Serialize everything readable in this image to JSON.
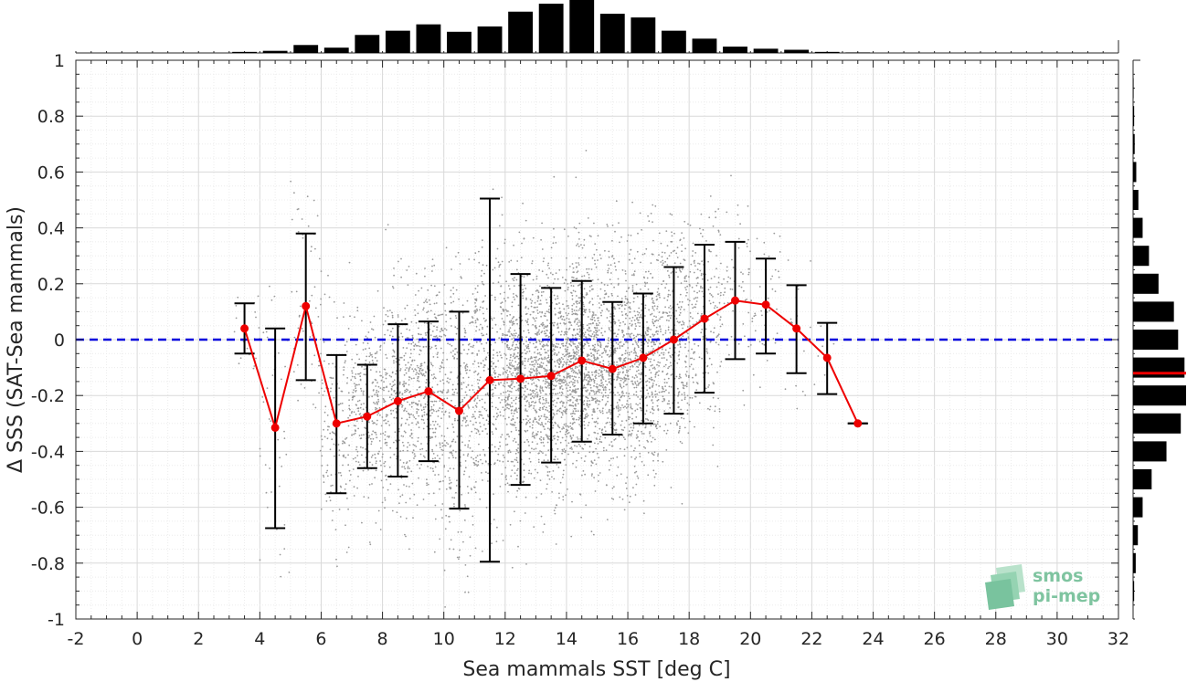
{
  "chart_data": {
    "type": "scatter",
    "xlabel": "Sea mammals SST [deg C]",
    "ylabel": "Δ SSS (SAT-Sea mammals)",
    "xlim": [
      -2,
      32
    ],
    "ylim": [
      -1,
      1
    ],
    "x_ticks": [
      "-2",
      "0",
      "2",
      "4",
      "6",
      "8",
      "10",
      "12",
      "14",
      "16",
      "18",
      "20",
      "22",
      "24",
      "26",
      "28",
      "30",
      "32"
    ],
    "y_ticks": [
      "-1",
      "-0.8",
      "-0.6",
      "-0.4",
      "-0.2",
      "0",
      "0.2",
      "0.4",
      "0.6",
      "0.8",
      "1"
    ],
    "grid": true,
    "reference_line": {
      "y": 0,
      "color": "#0000dd",
      "style": "dashed"
    },
    "binned_mean": {
      "color": "#ee0000",
      "x": [
        3.5,
        4.5,
        5.5,
        6.5,
        7.5,
        8.5,
        9.5,
        10.5,
        11.5,
        12.5,
        13.5,
        14.5,
        15.5,
        16.5,
        17.5,
        18.5,
        19.5,
        20.5,
        21.5,
        22.5,
        23.5
      ],
      "mean": [
        0.04,
        -0.315,
        0.12,
        -0.3,
        -0.275,
        -0.22,
        -0.185,
        -0.255,
        -0.145,
        -0.14,
        -0.13,
        -0.075,
        -0.105,
        -0.065,
        0.0,
        0.075,
        0.14,
        0.125,
        0.04,
        -0.065,
        -0.3
      ],
      "low": [
        -0.05,
        -0.675,
        -0.145,
        -0.55,
        -0.46,
        -0.49,
        -0.435,
        -0.605,
        -0.795,
        -0.52,
        -0.44,
        -0.365,
        -0.34,
        -0.3,
        -0.265,
        -0.19,
        -0.07,
        -0.05,
        -0.12,
        -0.195,
        -0.3
      ],
      "high": [
        0.13,
        0.04,
        0.38,
        -0.055,
        -0.09,
        0.055,
        0.065,
        0.1,
        0.505,
        0.235,
        0.185,
        0.21,
        0.135,
        0.165,
        0.26,
        0.34,
        0.35,
        0.29,
        0.195,
        0.06,
        -0.3
      ]
    },
    "scatter_cloud": {
      "color": "#9a9a9a",
      "description_bins": [
        {
          "x": 3.5,
          "n": 20,
          "mean": 0.04,
          "sd": 0.09
        },
        {
          "x": 4.5,
          "n": 40,
          "mean": -0.3,
          "sd": 0.3
        },
        {
          "x": 5.5,
          "n": 60,
          "mean": 0.1,
          "sd": 0.22
        },
        {
          "x": 6.5,
          "n": 160,
          "mean": -0.3,
          "sd": 0.2
        },
        {
          "x": 7.5,
          "n": 260,
          "mean": -0.27,
          "sd": 0.16
        },
        {
          "x": 8.5,
          "n": 320,
          "mean": -0.22,
          "sd": 0.2
        },
        {
          "x": 9.5,
          "n": 370,
          "mean": -0.19,
          "sd": 0.2
        },
        {
          "x": 10.5,
          "n": 300,
          "mean": -0.25,
          "sd": 0.25
        },
        {
          "x": 11.5,
          "n": 350,
          "mean": -0.14,
          "sd": 0.25
        },
        {
          "x": 12.5,
          "n": 560,
          "mean": -0.14,
          "sd": 0.2
        },
        {
          "x": 13.5,
          "n": 680,
          "mean": -0.13,
          "sd": 0.2
        },
        {
          "x": 14.5,
          "n": 740,
          "mean": -0.08,
          "sd": 0.2
        },
        {
          "x": 15.5,
          "n": 540,
          "mean": -0.1,
          "sd": 0.2
        },
        {
          "x": 16.5,
          "n": 520,
          "mean": -0.07,
          "sd": 0.2
        },
        {
          "x": 17.5,
          "n": 330,
          "mean": 0.0,
          "sd": 0.2
        },
        {
          "x": 18.5,
          "n": 200,
          "mean": 0.07,
          "sd": 0.18
        },
        {
          "x": 19.5,
          "n": 70,
          "mean": 0.14,
          "sd": 0.16
        },
        {
          "x": 20.5,
          "n": 40,
          "mean": 0.12,
          "sd": 0.14
        },
        {
          "x": 21.5,
          "n": 20,
          "mean": 0.04,
          "sd": 0.12
        },
        {
          "x": 22.5,
          "n": 6,
          "mean": -0.06,
          "sd": 0.1
        }
      ]
    },
    "top_histogram": {
      "bins_x": [
        3.5,
        4.5,
        5.5,
        6.5,
        7.5,
        8.5,
        9.5,
        10.5,
        11.5,
        12.5,
        13.5,
        14.5,
        15.5,
        16.5,
        17.5,
        18.5,
        19.5,
        20.5,
        21.5,
        22.5,
        23.5
      ],
      "relative_counts": [
        0.02,
        0.04,
        0.15,
        0.1,
        0.34,
        0.42,
        0.54,
        0.4,
        0.5,
        0.78,
        0.93,
        1.0,
        0.74,
        0.67,
        0.42,
        0.27,
        0.12,
        0.08,
        0.06,
        0.02,
        0.01
      ]
    },
    "right_histogram": {
      "bins_y": [
        0.9,
        0.8,
        0.7,
        0.6,
        0.5,
        0.4,
        0.3,
        0.2,
        0.1,
        0.0,
        -0.1,
        -0.2,
        -0.3,
        -0.4,
        -0.5,
        -0.6,
        -0.7,
        -0.8,
        -0.9
      ],
      "relative_counts": [
        0.01,
        0.02,
        0.03,
        0.06,
        0.1,
        0.18,
        0.3,
        0.48,
        0.77,
        0.85,
        0.97,
        1.0,
        0.9,
        0.63,
        0.35,
        0.18,
        0.09,
        0.05,
        0.02
      ],
      "marker_y": -0.12,
      "marker_color": "#ee0000"
    }
  },
  "logo": {
    "line1": "smos",
    "line2": "pi-mep",
    "color": "#7fc4a0"
  }
}
